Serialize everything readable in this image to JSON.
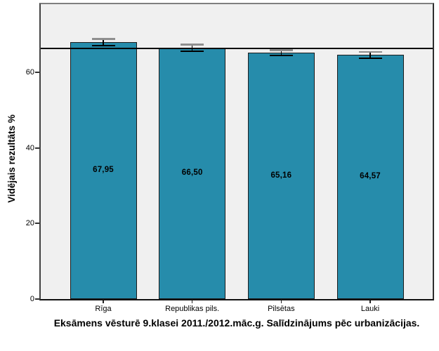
{
  "chart_data": {
    "type": "bar",
    "title": "Eksāmens vēsturē 9.klasei 2011./2012.māc.g. Salīdzinājums pēc urbanizācijas.",
    "ylabel": "Vidējais rezultāts %",
    "xlabel": "",
    "categories": [
      "Rīga",
      "Republikas pils.",
      "Pilsētas",
      "Lauki"
    ],
    "values": [
      67.95,
      66.5,
      65.16,
      64.57
    ],
    "value_labels": [
      "67,95",
      "66,50",
      "65,16",
      "64,57"
    ],
    "error_bars": [
      0.8,
      0.8,
      0.6,
      0.8
    ],
    "reference_line": 66.3,
    "ylim": [
      0,
      78
    ],
    "yticks": [
      0,
      20,
      40,
      60
    ],
    "ytick_labels": [
      "0",
      "20",
      "40",
      "60"
    ],
    "grid": false,
    "legend": false,
    "colors": {
      "bar_fill": "#268CAB",
      "bar_border": "#1b1b1b",
      "plot_bg": "#f0f0f0",
      "error_bar": "#000000",
      "error_cap_top": "#8f8f8f",
      "reference_line": "#000000",
      "text": "#000000"
    }
  }
}
